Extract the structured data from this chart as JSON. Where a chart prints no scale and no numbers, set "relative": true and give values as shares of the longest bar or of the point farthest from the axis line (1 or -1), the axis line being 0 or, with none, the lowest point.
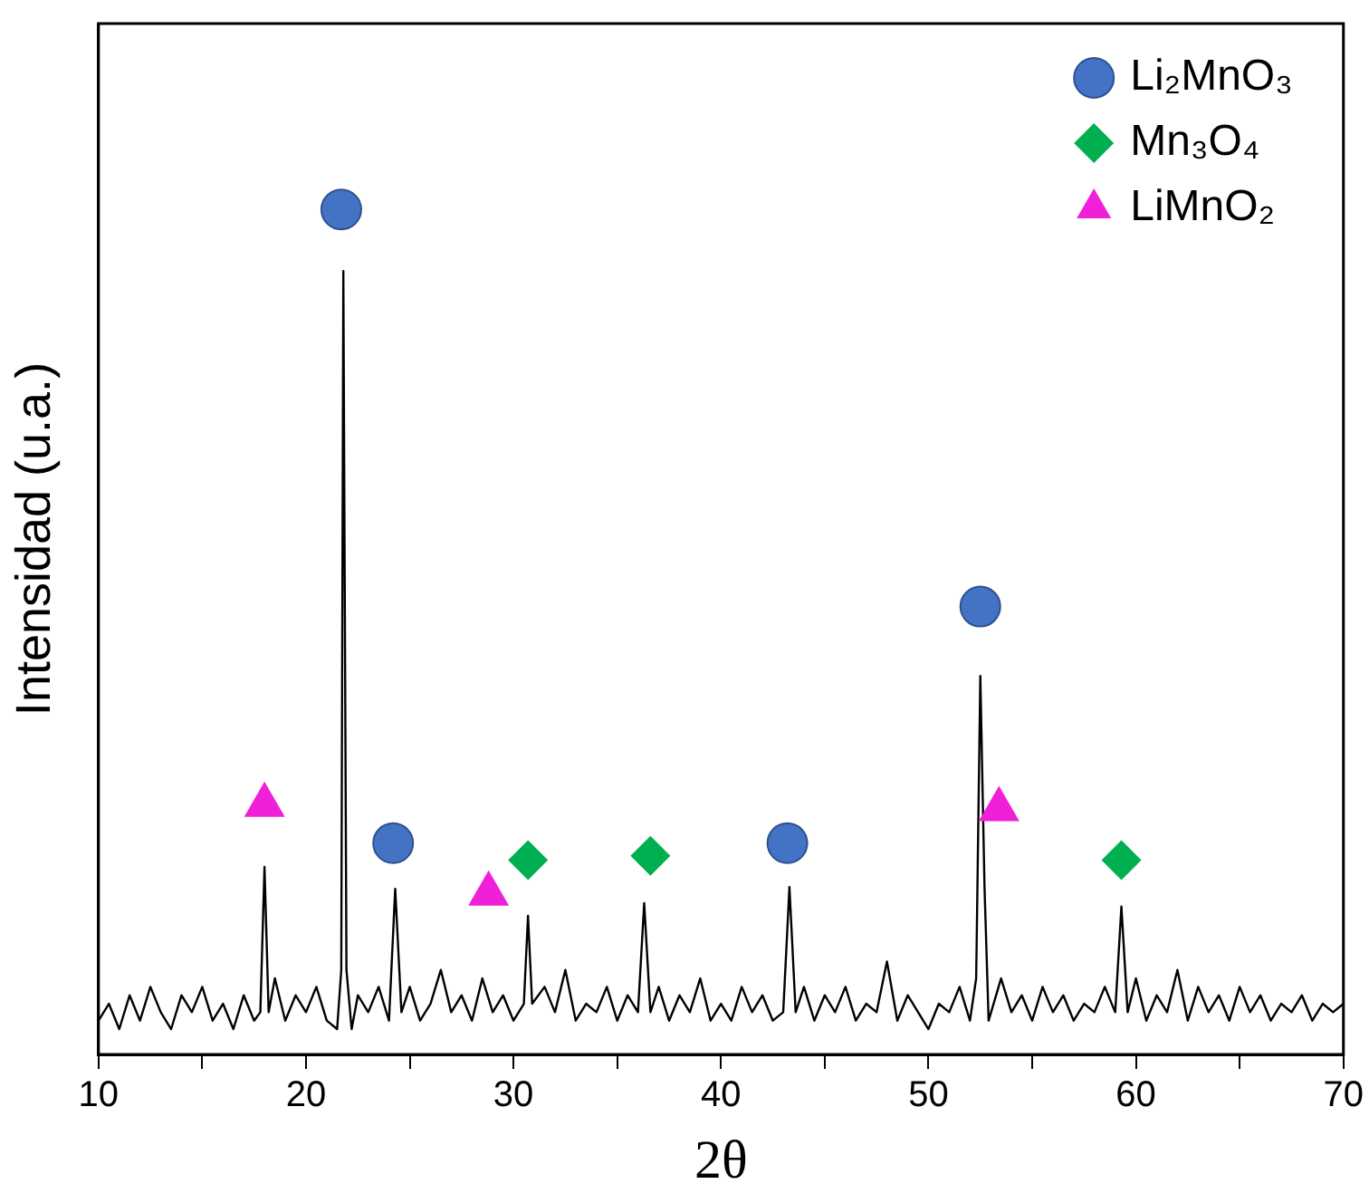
{
  "chart_data": {
    "type": "line",
    "xlabel": "2θ",
    "ylabel": "Intensidad (u.a.)",
    "relative": true,
    "xlim": [
      10,
      70
    ],
    "xticks": [
      10,
      {
        "value": 15,
        "label": null
      },
      20,
      {
        "value": 25,
        "label": null
      },
      30,
      {
        "value": 35,
        "label": null
      },
      40,
      {
        "value": 45,
        "label": null
      },
      50,
      {
        "value": 55,
        "label": null
      },
      60,
      {
        "value": 65,
        "label": null
      },
      70
    ],
    "legend": "top right",
    "grid": false,
    "series": [
      {
        "color": "#000000",
        "x": [
          10,
          10.5,
          11,
          11.5,
          12,
          12.5,
          13,
          13.5,
          14,
          14.5,
          15,
          15.5,
          16,
          16.5,
          17,
          17.5,
          17.8,
          18.0,
          18.2,
          18.5,
          19,
          19.5,
          20,
          20.5,
          21,
          21.5,
          21.7,
          21.8,
          21.95,
          22.2,
          22.5,
          23,
          23.5,
          24,
          24.3,
          24.6,
          25,
          25.5,
          26,
          26.5,
          27,
          27.5,
          28,
          28.5,
          29,
          29.5,
          30,
          30.5,
          30.7,
          30.9,
          31.5,
          32,
          32.5,
          33,
          33.5,
          34,
          34.5,
          35,
          35.5,
          36,
          36.3,
          36.6,
          37,
          37.5,
          38,
          38.5,
          39,
          39.5,
          40,
          40.5,
          41,
          41.5,
          42,
          42.5,
          43,
          43.3,
          43.6,
          44,
          44.5,
          45,
          45.5,
          46,
          46.5,
          47,
          47.5,
          48,
          48.5,
          49,
          49.5,
          50,
          50.5,
          51,
          51.5,
          52,
          52.3,
          52.5,
          52.7,
          52.9,
          53.5,
          54,
          54.5,
          55,
          55.5,
          56,
          56.5,
          57,
          57.5,
          58,
          58.5,
          59,
          59.3,
          59.6,
          60,
          60.5,
          61,
          61.5,
          62,
          62.5,
          63,
          63.5,
          64,
          64.5,
          65,
          65.5,
          66,
          66.5,
          67,
          67.5,
          68,
          68.5,
          69,
          69.5,
          70
        ],
        "values": [
          0.04,
          0.06,
          0.03,
          0.07,
          0.04,
          0.08,
          0.05,
          0.03,
          0.07,
          0.05,
          0.08,
          0.04,
          0.06,
          0.03,
          0.07,
          0.04,
          0.05,
          0.222,
          0.05,
          0.09,
          0.04,
          0.07,
          0.05,
          0.08,
          0.04,
          0.03,
          0.1,
          0.927,
          0.1,
          0.03,
          0.07,
          0.05,
          0.08,
          0.04,
          0.196,
          0.05,
          0.08,
          0.04,
          0.06,
          0.1,
          0.05,
          0.07,
          0.04,
          0.09,
          0.05,
          0.07,
          0.04,
          0.06,
          0.164,
          0.06,
          0.08,
          0.05,
          0.1,
          0.04,
          0.06,
          0.05,
          0.08,
          0.04,
          0.07,
          0.05,
          0.179,
          0.05,
          0.08,
          0.04,
          0.07,
          0.05,
          0.09,
          0.04,
          0.06,
          0.04,
          0.08,
          0.05,
          0.07,
          0.04,
          0.05,
          0.198,
          0.05,
          0.08,
          0.04,
          0.07,
          0.05,
          0.08,
          0.04,
          0.06,
          0.05,
          0.11,
          0.04,
          0.07,
          0.05,
          0.03,
          0.06,
          0.05,
          0.08,
          0.04,
          0.09,
          0.448,
          0.2,
          0.04,
          0.09,
          0.05,
          0.07,
          0.04,
          0.08,
          0.05,
          0.07,
          0.04,
          0.06,
          0.05,
          0.08,
          0.05,
          0.175,
          0.05,
          0.09,
          0.04,
          0.07,
          0.05,
          0.1,
          0.04,
          0.08,
          0.05,
          0.07,
          0.04,
          0.08,
          0.05,
          0.07,
          0.04,
          0.06,
          0.05,
          0.07,
          0.04,
          0.06,
          0.05,
          0.06
        ]
      },
      {
        "type": "scatter",
        "name": "Li₂MnO₃",
        "color": "#4472c4",
        "marker": "circle",
        "x": [
          21.7,
          24.2,
          43.2,
          52.5
        ],
        "values": [
          1.0,
          0.25,
          0.25,
          0.53
        ]
      },
      {
        "type": "scatter",
        "name": "Mn₃O₄",
        "color": "#00b050",
        "marker": "diamond",
        "x": [
          30.7,
          36.6,
          59.3
        ],
        "values": [
          0.23,
          0.235,
          0.23
        ]
      },
      {
        "type": "scatter",
        "name": "LiMnO₂",
        "color": "#f020d8",
        "marker": "triangle",
        "x": [
          18.0,
          28.8,
          53.4
        ],
        "values": [
          0.295,
          0.19,
          0.29
        ]
      }
    ]
  }
}
